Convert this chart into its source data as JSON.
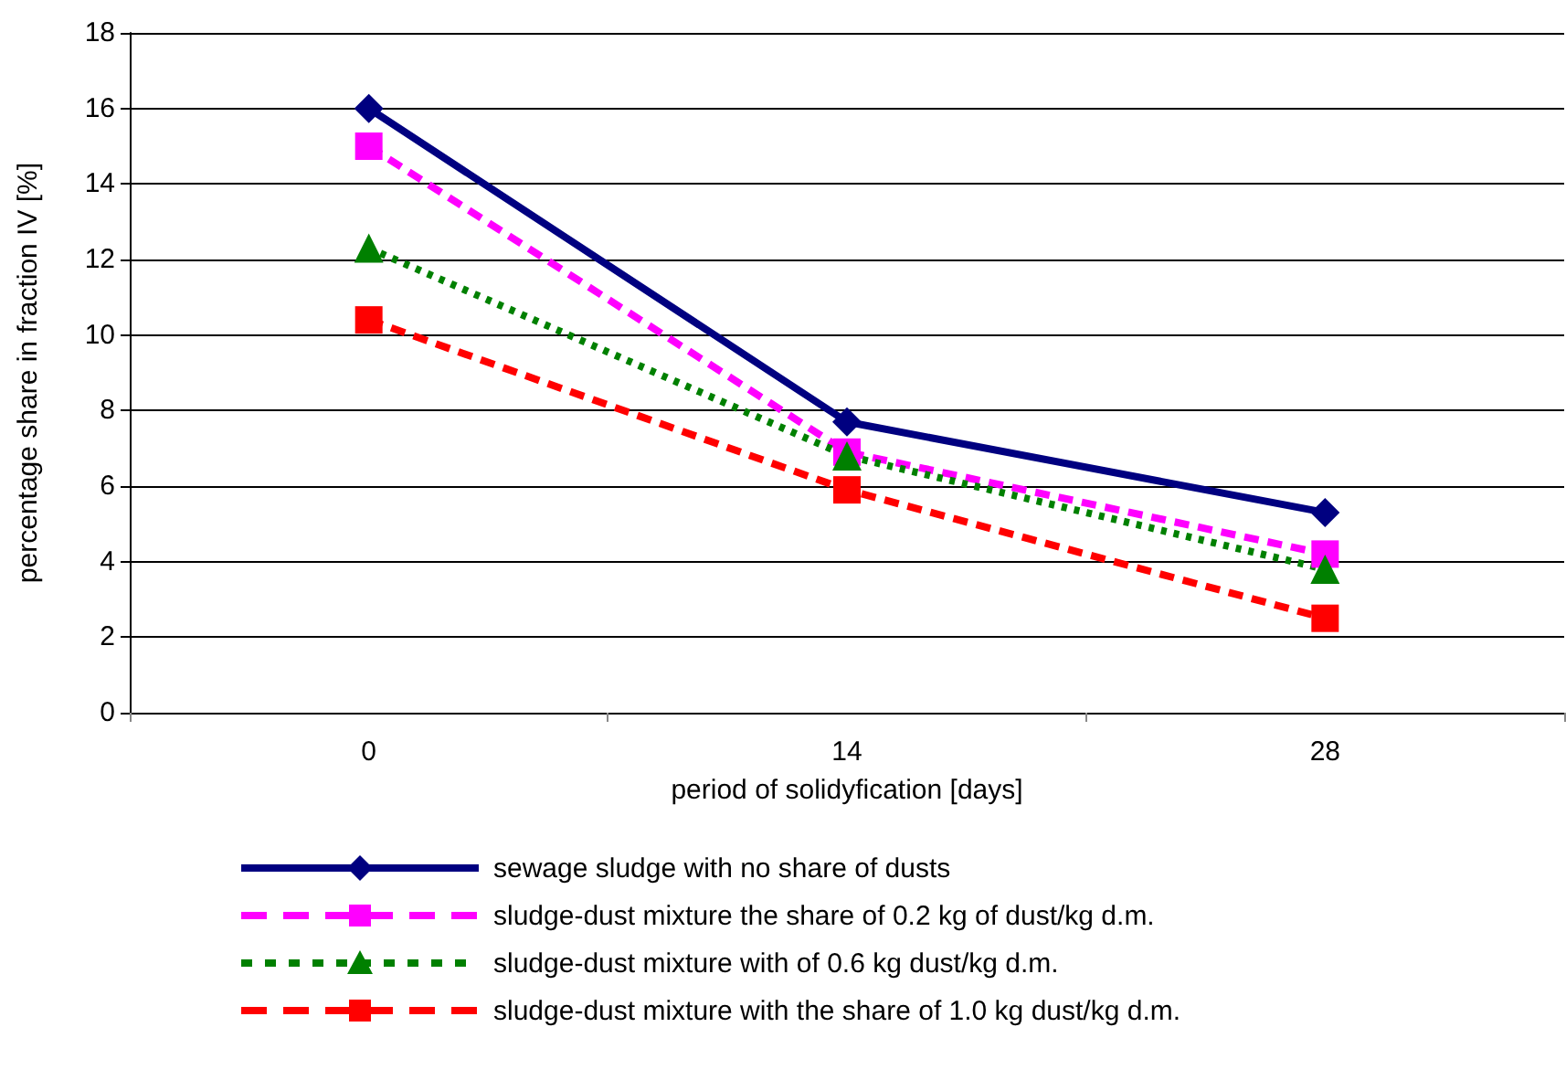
{
  "chart_data": {
    "type": "line",
    "xlabel": "period of solidyfication [days]",
    "ylabel": "percentage share in fraction IV [%]",
    "categories": [
      "0",
      "14",
      "28"
    ],
    "ylim": [
      0,
      18
    ],
    "yticks": [
      0,
      2,
      4,
      6,
      8,
      10,
      12,
      14,
      16,
      18
    ],
    "grid": "y",
    "legend": "bottom",
    "series": [
      {
        "name": "sewage sludge with no share of dusts",
        "color": "#000080",
        "values": [
          16.0,
          7.7,
          5.3
        ],
        "marker": "diamond",
        "line_style": "solid"
      },
      {
        "name": "sludge-dust mixture the share of 0.2 kg of dust/kg d.m.",
        "color": "#ff00ff",
        "values": [
          15.0,
          6.9,
          4.2
        ],
        "marker": "square",
        "line_style": "dashed"
      },
      {
        "name": "sludge-dust mixture with of 0.6 kg dust/kg d.m.",
        "color": "#008000",
        "values": [
          12.3,
          6.8,
          3.8
        ],
        "marker": "triangle",
        "line_style": "dotted"
      },
      {
        "name": "sludge-dust mixture with the share of 1.0 kg dust/kg d.m.",
        "color": "#ff0000",
        "values": [
          10.4,
          5.9,
          2.5
        ],
        "marker": "square",
        "line_style": "dashed"
      }
    ]
  }
}
